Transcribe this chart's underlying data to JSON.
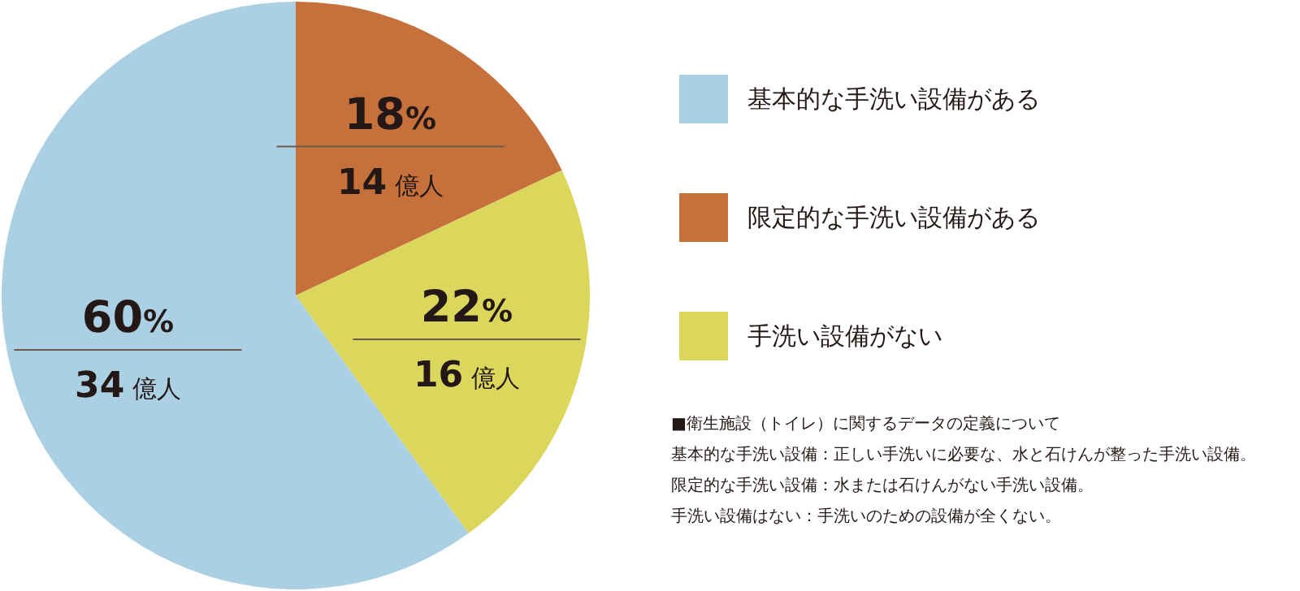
{
  "chart_data": {
    "type": "pie",
    "categories": [
      "基本的な手洗い設備がある",
      "限定的な手洗い設備がある",
      "手洗い設備がない"
    ],
    "values": [
      60,
      18,
      22
    ],
    "colors": [
      "#abd0e3",
      "#c6703c",
      "#dad75c"
    ],
    "value_labels": [
      "60%",
      "18%",
      "22%"
    ],
    "legend": "right",
    "annotations": [
      {
        "text": "34 億人",
        "x": "基本的な手洗い設備がある"
      },
      {
        "text": "14 億人",
        "x": "限定的な手洗い設備がある"
      },
      {
        "text": "16 億人",
        "x": "手洗い設備がない"
      },
      "■衛生施設（トイレ）に関するデータの定義について",
      "基本的な手洗い設備：正しい手洗いに必要な、水と石けんが整った手洗い設備。",
      "限定的な手洗い設備：水または石けんがない手洗い設備。",
      "手洗い設備はない：手洗いのための設備が全くない。"
    ]
  }
}
